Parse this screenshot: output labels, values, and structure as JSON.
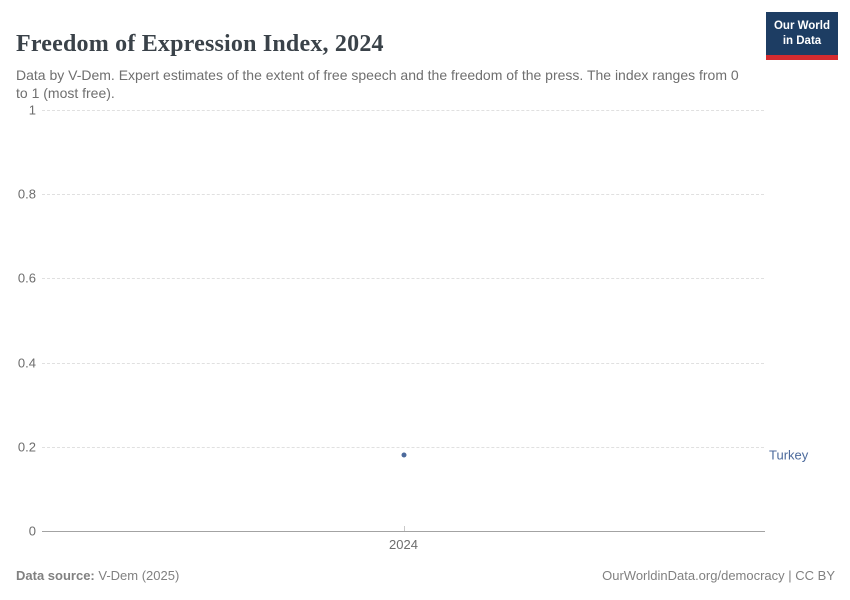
{
  "header": {
    "title": "Freedom of Expression Index, 2024",
    "subtitle": "Data by V-Dem. Expert estimates of the extent of free speech and the freedom of the press. The index ranges from 0 to 1 (most free).",
    "logo": {
      "line1": "Our World",
      "line2": "in Data",
      "bg_color": "#1d3d63",
      "bar_color": "#d42b2f"
    }
  },
  "chart_data": {
    "type": "scatter",
    "title": "Freedom of Expression Index, 2024",
    "x": [
      2024
    ],
    "series": [
      {
        "name": "Turkey",
        "values": [
          0.18
        ],
        "color": "#4c6a9c"
      }
    ],
    "xlabel": "",
    "ylabel": "",
    "ylim": [
      0,
      1
    ],
    "yticks": [
      {
        "value": 0,
        "label": "0"
      },
      {
        "value": 0.2,
        "label": "0.2"
      },
      {
        "value": 0.4,
        "label": "0.4"
      },
      {
        "value": 0.6,
        "label": "0.6"
      },
      {
        "value": 0.8,
        "label": "0.8"
      },
      {
        "value": 1,
        "label": "1"
      }
    ],
    "xticks": [
      {
        "value": 2024,
        "label": "2024"
      }
    ],
    "grid": "horizontal-dashed",
    "legend_position": "right-entity-label"
  },
  "footer": {
    "source_label": "Data source:",
    "source_value": " V-Dem (2025)",
    "right_text": "OurWorldinData.org/democracy | CC BY"
  }
}
